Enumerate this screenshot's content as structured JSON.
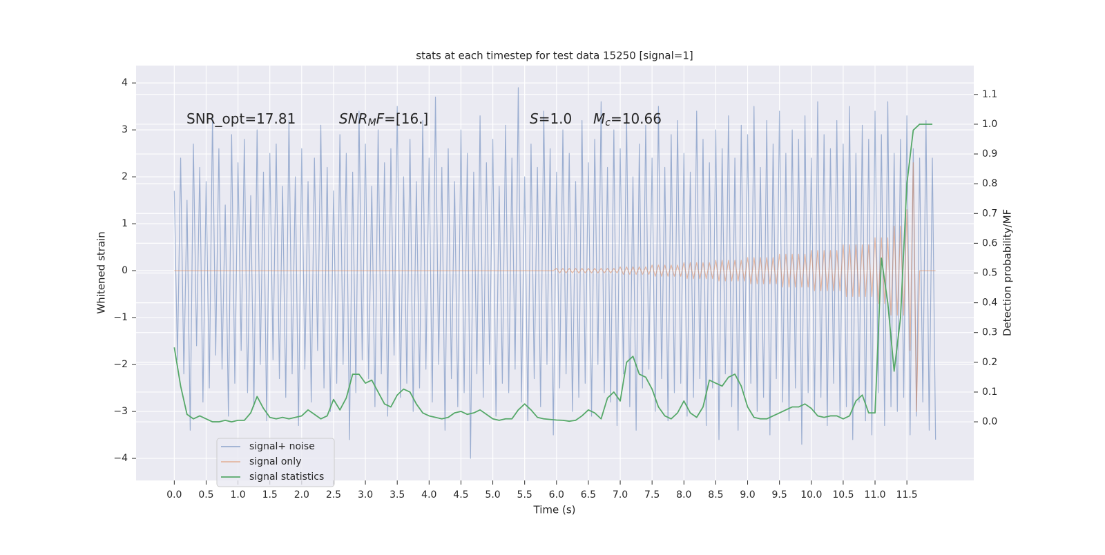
{
  "chart_data": {
    "type": "line",
    "title": "stats at each timestep for test data 15250 [signal=1]",
    "xlabel": "Time (s)",
    "ylabel": "Whitened strain",
    "y2label": "Detection probability/MF",
    "annotations": [
      [
        {
          "text": "SNR_opt=17.81"
        }
      ],
      [
        {
          "text": "SNR",
          "italic": true
        },
        {
          "text": "M",
          "italic": true,
          "sub": true
        },
        {
          "text": "F",
          "italic": true
        },
        {
          "text": "=[16.]"
        }
      ],
      [
        {
          "text": "S",
          "italic": true
        },
        {
          "text": "=1.0"
        }
      ],
      [
        {
          "text": "M",
          "italic": true
        },
        {
          "text": "c",
          "italic": true,
          "sub": true
        },
        {
          "text": "=10.66"
        }
      ]
    ],
    "grid": true,
    "legend": "lower left",
    "xlim": [
      -0.6,
      12.55
    ],
    "ylim": [
      -4.47,
      4.37
    ],
    "y2lim": [
      -0.197,
      1.197
    ],
    "xticks": [
      {
        "value": 0,
        "label": "0.0"
      },
      0.5,
      {
        "value": 1,
        "label": "1.0"
      },
      1.5,
      {
        "value": 2,
        "label": "2.0"
      },
      2.5,
      {
        "value": 3,
        "label": "3.0"
      },
      3.5,
      {
        "value": 4,
        "label": "4.0"
      },
      4.5,
      {
        "value": 5,
        "label": "5.0"
      },
      5.5,
      {
        "value": 6,
        "label": "6.0"
      },
      6.5,
      {
        "value": 7,
        "label": "7.0"
      },
      7.5,
      {
        "value": 8,
        "label": "8.0"
      },
      8.5,
      {
        "value": 9,
        "label": "9.0"
      },
      9.5,
      {
        "value": 10,
        "label": "10.0"
      },
      10.5,
      {
        "value": 11,
        "label": "11.0"
      },
      11.5
    ],
    "yticks": [
      {
        "value": -4,
        "label": "−4"
      },
      {
        "value": -3,
        "label": "−3"
      },
      {
        "value": -2,
        "label": "−2"
      },
      {
        "value": -1,
        "label": "−1"
      },
      0,
      1,
      2,
      3,
      4
    ],
    "y2ticks": [
      {
        "value": 0,
        "label": "0.0"
      },
      0.1,
      0.2,
      0.3,
      0.4,
      0.5,
      0.6,
      0.7,
      0.8,
      0.9,
      {
        "value": 1,
        "label": "1.0"
      },
      1.1
    ],
    "x": [
      0,
      0.05,
      0.1,
      0.15,
      0.2,
      0.25,
      0.3,
      0.35,
      0.4,
      0.45,
      0.5,
      0.55,
      0.6,
      0.65,
      0.7,
      0.75,
      0.8,
      0.85,
      0.9,
      0.95,
      1,
      1.05,
      1.1,
      1.15,
      1.2,
      1.25,
      1.3,
      1.35,
      1.4,
      1.45,
      1.5,
      1.55,
      1.6,
      1.65,
      1.7,
      1.75,
      1.8,
      1.85,
      1.9,
      1.95,
      2,
      2.05,
      2.1,
      2.15,
      2.2,
      2.25,
      2.3,
      2.35,
      2.4,
      2.45,
      2.5,
      2.55,
      2.6,
      2.65,
      2.7,
      2.75,
      2.8,
      2.85,
      2.9,
      2.95,
      3,
      3.05,
      3.1,
      3.15,
      3.2,
      3.25,
      3.3,
      3.35,
      3.4,
      3.45,
      3.5,
      3.55,
      3.6,
      3.65,
      3.7,
      3.75,
      3.8,
      3.85,
      3.9,
      3.95,
      4,
      4.05,
      4.1,
      4.15,
      4.2,
      4.25,
      4.3,
      4.35,
      4.4,
      4.45,
      4.5,
      4.55,
      4.6,
      4.65,
      4.7,
      4.75,
      4.8,
      4.85,
      4.9,
      4.95,
      5,
      5.05,
      5.1,
      5.15,
      5.2,
      5.25,
      5.3,
      5.35,
      5.4,
      5.45,
      5.5,
      5.55,
      5.6,
      5.65,
      5.7,
      5.75,
      5.8,
      5.85,
      5.9,
      5.95,
      6,
      6.05,
      6.1,
      6.15,
      6.2,
      6.25,
      6.3,
      6.35,
      6.4,
      6.45,
      6.5,
      6.55,
      6.6,
      6.65,
      6.7,
      6.75,
      6.8,
      6.85,
      6.9,
      6.95,
      7,
      7.05,
      7.1,
      7.15,
      7.2,
      7.25,
      7.3,
      7.35,
      7.4,
      7.45,
      7.5,
      7.55,
      7.6,
      7.65,
      7.7,
      7.75,
      7.8,
      7.85,
      7.9,
      7.95,
      8,
      8.05,
      8.1,
      8.15,
      8.2,
      8.25,
      8.3,
      8.35,
      8.4,
      8.45,
      8.5,
      8.55,
      8.6,
      8.65,
      8.7,
      8.75,
      8.8,
      8.85,
      8.9,
      8.95,
      9,
      9.05,
      9.1,
      9.15,
      9.2,
      9.25,
      9.3,
      9.35,
      9.4,
      9.45,
      9.5,
      9.55,
      9.6,
      9.65,
      9.7,
      9.75,
      9.8,
      9.85,
      9.9,
      9.95,
      10,
      10.05,
      10.1,
      10.15,
      10.2,
      10.25,
      10.3,
      10.35,
      10.4,
      10.45,
      10.5,
      10.55,
      10.6,
      10.65,
      10.7,
      10.75,
      10.8,
      10.85,
      10.9,
      10.95,
      11,
      11.05,
      11.1,
      11.15,
      11.2,
      11.25,
      11.3,
      11.35,
      11.4,
      11.45,
      11.5,
      11.55,
      11.6,
      11.65,
      11.7,
      11.75,
      11.8,
      11.85,
      11.9,
      11.95
    ],
    "series": [
      {
        "name": "signal+ noise",
        "color": "#4c72b0",
        "alpha": 0.5,
        "values": [
          1.7,
          -1.9,
          2.4,
          -2.2,
          1.5,
          -3.4,
          2.7,
          -1.6,
          2.2,
          -2.8,
          1.9,
          -2.5,
          3.3,
          -1.8,
          2.6,
          -2.1,
          1.4,
          -3.1,
          2.9,
          -2.4,
          2.3,
          -1.7,
          2.8,
          -2.6,
          1.6,
          -2.9,
          3.0,
          -2.0,
          2.1,
          -3.2,
          2.5,
          -1.9,
          2.7,
          -2.3,
          1.8,
          -2.7,
          3.2,
          -2.2,
          2.0,
          -3.3,
          2.6,
          -2.1,
          1.9,
          -2.8,
          2.4,
          -1.7,
          3.1,
          -2.5,
          2.2,
          -3.0,
          1.7,
          -2.4,
          2.9,
          -2.0,
          2.5,
          -3.6,
          2.1,
          -2.6,
          3.4,
          -1.9,
          2.7,
          -2.3,
          1.8,
          -2.9,
          3.0,
          -2.2,
          2.3,
          -3.1,
          2.6,
          -1.8,
          3.5,
          -2.7,
          2.0,
          -2.4,
          2.8,
          -3.0,
          1.9,
          -2.5,
          3.2,
          -2.1,
          2.4,
          -2.8,
          3.7,
          -2.0,
          2.2,
          -3.4,
          2.6,
          -2.3,
          1.9,
          -2.9,
          3.0,
          -2.6,
          2.5,
          -4.0,
          2.1,
          -2.2,
          3.3,
          -2.7,
          2.3,
          -2.0,
          2.8,
          -3.1,
          1.8,
          -2.4,
          3.1,
          -2.6,
          2.4,
          -2.1,
          3.9,
          -2.8,
          2.0,
          -3.2,
          2.7,
          -2.3,
          2.2,
          -2.9,
          3.4,
          -2.0,
          2.6,
          -3.5,
          2.1,
          -2.5,
          3.0,
          -2.2,
          2.5,
          -3.0,
          1.9,
          -2.7,
          3.2,
          -2.4,
          2.3,
          -3.1,
          2.8,
          -2.0,
          3.6,
          -2.6,
          2.2,
          -2.8,
          3.0,
          -3.3,
          2.6,
          -2.2,
          3.3,
          -2.9,
          2.0,
          -3.4,
          2.7,
          -2.5,
          3.1,
          -2.1,
          2.4,
          -3.0,
          3.5,
          -2.3,
          2.2,
          -3.2,
          2.9,
          -2.6,
          3.2,
          -2.4,
          2.5,
          -3.1,
          2.1,
          -2.7,
          3.4,
          -2.3,
          2.8,
          -3.3,
          2.3,
          -2.5,
          3.0,
          -3.6,
          2.6,
          -2.2,
          3.3,
          -2.9,
          2.4,
          -3.4,
          3.1,
          -2.6,
          2.9,
          -2.4,
          3.5,
          -3.0,
          2.2,
          -2.7,
          3.2,
          -3.5,
          2.7,
          -2.3,
          3.4,
          -2.8,
          2.5,
          -3.2,
          3.0,
          -2.5,
          2.8,
          -3.7,
          3.3,
          -2.6,
          2.4,
          -3.0,
          3.6,
          -2.7,
          2.9,
          -3.3,
          2.6,
          -2.4,
          3.2,
          -3.1,
          2.7,
          -2.9,
          3.5,
          -3.6,
          2.5,
          -2.8,
          3.1,
          -3.2,
          2.8,
          -3.5,
          3.4,
          -2.6,
          2.9,
          -3.3,
          3.6,
          -2.9,
          2.5,
          -3.0,
          2.8,
          -2.7,
          3.3,
          -3.5,
          2.6,
          -3.1,
          2.4,
          -2.8,
          3.2,
          -3.4,
          2.4,
          -3.6
        ]
      },
      {
        "name": "signal only",
        "color": "#dd8452",
        "alpha": 0.5,
        "values": [
          0,
          0,
          0,
          0,
          0,
          0,
          0,
          0,
          0,
          0,
          0,
          0,
          0,
          0,
          0,
          0,
          0,
          0,
          0,
          0,
          0,
          0,
          0,
          0,
          0,
          0,
          0,
          0,
          0,
          0,
          0,
          0,
          0,
          0,
          0,
          0,
          0,
          0,
          0,
          0,
          0,
          0,
          0,
          0,
          0,
          0,
          0,
          0,
          0,
          0,
          0,
          0,
          0,
          0,
          0,
          0,
          0,
          0,
          0,
          0,
          0,
          0,
          0,
          0,
          0,
          0,
          0,
          0,
          0,
          0,
          0,
          0,
          0,
          0,
          0,
          0,
          0,
          0,
          0,
          0,
          0,
          0,
          0,
          0,
          0,
          0,
          0,
          0,
          0,
          0,
          0,
          0,
          0,
          0,
          0,
          0,
          0,
          0,
          0,
          0,
          0,
          0,
          0,
          0,
          0,
          0,
          0,
          0,
          0,
          0,
          0,
          0,
          0,
          0,
          0,
          0,
          0,
          0,
          0,
          0,
          0.05,
          -0.05,
          0.05,
          -0.05,
          0.05,
          -0.05,
          0.05,
          -0.05,
          0.05,
          -0.05,
          0.05,
          -0.05,
          0.05,
          -0.05,
          0.05,
          -0.05,
          0.05,
          -0.05,
          0.05,
          -0.05,
          0.08,
          -0.08,
          0.08,
          -0.08,
          0.08,
          -0.08,
          0.08,
          -0.08,
          0.08,
          -0.08,
          0.12,
          -0.12,
          0.12,
          -0.12,
          0.12,
          -0.12,
          0.12,
          -0.12,
          0.12,
          -0.12,
          0.17,
          -0.17,
          0.17,
          -0.17,
          0.17,
          -0.17,
          0.17,
          -0.17,
          0.17,
          -0.17,
          0.22,
          -0.22,
          0.22,
          -0.22,
          0.22,
          -0.22,
          0.22,
          -0.22,
          0.22,
          -0.22,
          0.28,
          -0.28,
          0.28,
          -0.28,
          0.28,
          -0.28,
          0.28,
          -0.28,
          0.28,
          -0.28,
          0.35,
          -0.35,
          0.35,
          -0.35,
          0.35,
          -0.35,
          0.35,
          -0.35,
          0.35,
          -0.35,
          0.43,
          -0.43,
          0.43,
          -0.43,
          0.43,
          -0.43,
          0.43,
          -0.43,
          0.43,
          -0.43,
          0.55,
          -0.55,
          0.55,
          -0.55,
          0.55,
          -0.55,
          0.55,
          -0.55,
          0.55,
          -0.55,
          0.7,
          -0.7,
          0.7,
          -0.7,
          0.7,
          -0.95,
          0.95,
          -0.95,
          0.95,
          -0.95,
          1.3,
          -1.7,
          2.3,
          -3.0,
          0,
          0,
          0,
          0,
          0,
          0
        ]
      },
      {
        "name": "signal statistics",
        "color": "#55a868",
        "axis": "y2",
        "x": [
          0,
          0.1,
          0.2,
          0.3,
          0.4,
          0.5,
          0.6,
          0.7,
          0.8,
          0.9,
          1,
          1.1,
          1.2,
          1.3,
          1.4,
          1.5,
          1.6,
          1.7,
          1.8,
          1.9,
          2,
          2.1,
          2.2,
          2.3,
          2.4,
          2.5,
          2.6,
          2.7,
          2.8,
          2.9,
          3,
          3.1,
          3.2,
          3.3,
          3.4,
          3.5,
          3.6,
          3.7,
          3.8,
          3.9,
          4,
          4.1,
          4.2,
          4.3,
          4.4,
          4.5,
          4.6,
          4.7,
          4.8,
          4.9,
          5,
          5.1,
          5.2,
          5.3,
          5.4,
          5.5,
          5.6,
          5.7,
          5.8,
          5.9,
          6,
          6.1,
          6.2,
          6.3,
          6.4,
          6.5,
          6.6,
          6.7,
          6.8,
          6.9,
          7,
          7.1,
          7.2,
          7.3,
          7.4,
          7.5,
          7.6,
          7.7,
          7.8,
          7.9,
          8,
          8.1,
          8.2,
          8.3,
          8.4,
          8.5,
          8.6,
          8.7,
          8.8,
          8.9,
          9,
          9.1,
          9.2,
          9.3,
          9.4,
          9.5,
          9.6,
          9.7,
          9.8,
          9.9,
          10,
          10.1,
          10.2,
          10.3,
          10.4,
          10.5,
          10.6,
          10.7,
          10.8,
          10.9,
          11,
          11.1,
          11.2,
          11.3,
          11.4,
          11.5,
          11.6,
          11.7,
          11.8,
          11.9
        ],
        "values": [
          0.25,
          0.12,
          0.025,
          0.01,
          0.02,
          0.01,
          0.0,
          0.0,
          0.005,
          0.0,
          0.005,
          0.005,
          0.03,
          0.085,
          0.045,
          0.015,
          0.01,
          0.015,
          0.01,
          0.015,
          0.02,
          0.04,
          0.025,
          0.01,
          0.02,
          0.075,
          0.04,
          0.08,
          0.16,
          0.16,
          0.13,
          0.14,
          0.1,
          0.06,
          0.05,
          0.09,
          0.11,
          0.1,
          0.06,
          0.03,
          0.02,
          0.015,
          0.01,
          0.015,
          0.03,
          0.035,
          0.025,
          0.03,
          0.04,
          0.025,
          0.01,
          0.005,
          0.01,
          0.01,
          0.04,
          0.06,
          0.04,
          0.015,
          0.01,
          0.008,
          0.006,
          0.005,
          0.002,
          0.005,
          0.02,
          0.04,
          0.03,
          0.01,
          0.08,
          0.1,
          0.07,
          0.2,
          0.22,
          0.16,
          0.15,
          0.11,
          0.05,
          0.02,
          0.01,
          0.03,
          0.07,
          0.03,
          0.015,
          0.05,
          0.14,
          0.13,
          0.12,
          0.15,
          0.16,
          0.12,
          0.05,
          0.015,
          0.01,
          0.01,
          0.02,
          0.03,
          0.04,
          0.05,
          0.05,
          0.06,
          0.045,
          0.02,
          0.015,
          0.02,
          0.02,
          0.01,
          0.02,
          0.07,
          0.09,
          0.03,
          0.03,
          0.55,
          0.4,
          0.17,
          0.35,
          0.8,
          0.98,
          1.0,
          1.0,
          1.0
        ]
      }
    ]
  }
}
